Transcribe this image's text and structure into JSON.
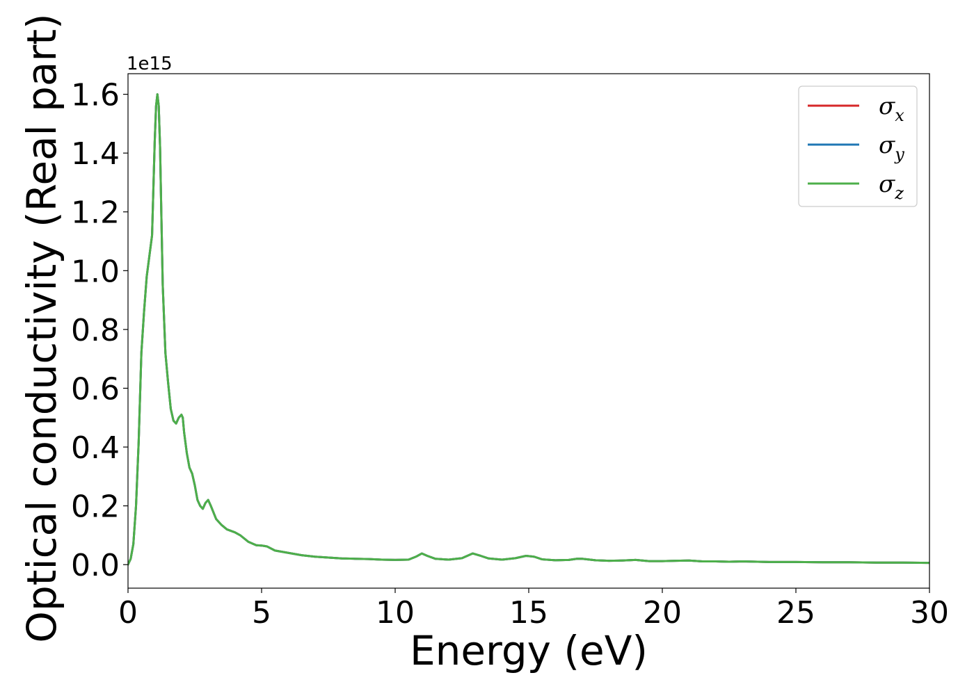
{
  "chart_data": {
    "type": "line",
    "title": "",
    "xlabel": "Energy (eV)",
    "ylabel": "Optical conductivity (Real part)",
    "y_offset_text": "1e15",
    "y_scale_factor": 1000000000000000.0,
    "xlim": [
      0,
      30
    ],
    "ylim": [
      -0.08,
      1.67
    ],
    "x_ticks": [
      0,
      5,
      10,
      15,
      20,
      25,
      30
    ],
    "x_tick_labels": [
      "0",
      "5",
      "10",
      "15",
      "20",
      "25",
      "30"
    ],
    "y_ticks": [
      0.0,
      0.2,
      0.4,
      0.6,
      0.8,
      1.0,
      1.2,
      1.4,
      1.6
    ],
    "y_tick_labels": [
      "0.0",
      "0.2",
      "0.4",
      "0.6",
      "0.8",
      "1.0",
      "1.2",
      "1.4",
      "1.6"
    ],
    "grid": false,
    "legend_position": "top-right",
    "x": [
      0,
      0.1,
      0.2,
      0.3,
      0.4,
      0.5,
      0.6,
      0.7,
      0.8,
      0.9,
      1.0,
      1.05,
      1.1,
      1.15,
      1.2,
      1.25,
      1.3,
      1.4,
      1.5,
      1.6,
      1.7,
      1.8,
      1.9,
      2.0,
      2.05,
      2.1,
      2.2,
      2.3,
      2.4,
      2.5,
      2.6,
      2.7,
      2.8,
      2.9,
      3.0,
      3.1,
      3.3,
      3.5,
      3.7,
      4.0,
      4.2,
      4.5,
      4.8,
      5.0,
      5.2,
      5.5,
      6.0,
      6.5,
      7.0,
      7.5,
      8.0,
      8.5,
      9.0,
      9.5,
      10.0,
      10.5,
      10.8,
      11.0,
      11.2,
      11.5,
      12.0,
      12.5,
      12.9,
      13.2,
      13.5,
      14.0,
      14.5,
      14.9,
      15.2,
      15.5,
      16.0,
      16.5,
      16.8,
      17.0,
      17.5,
      18.0,
      18.5,
      19.0,
      19.5,
      20.0,
      20.5,
      21.0,
      21.5,
      22.0,
      22.5,
      23.0,
      24.0,
      25.0,
      26.0,
      27.0,
      28.0,
      29.0,
      30.0
    ],
    "series": [
      {
        "name": "σx",
        "label_base": "σ",
        "label_sub": "x",
        "color": "#d62728",
        "values": [
          0.0,
          0.02,
          0.07,
          0.2,
          0.42,
          0.72,
          0.86,
          0.98,
          1.05,
          1.12,
          1.44,
          1.56,
          1.6,
          1.56,
          1.42,
          1.18,
          0.95,
          0.72,
          0.62,
          0.53,
          0.49,
          0.48,
          0.5,
          0.51,
          0.5,
          0.45,
          0.38,
          0.33,
          0.31,
          0.27,
          0.22,
          0.2,
          0.19,
          0.21,
          0.22,
          0.2,
          0.155,
          0.135,
          0.12,
          0.11,
          0.1,
          0.078,
          0.066,
          0.065,
          0.062,
          0.048,
          0.04,
          0.032,
          0.027,
          0.024,
          0.021,
          0.02,
          0.019,
          0.017,
          0.016,
          0.017,
          0.028,
          0.038,
          0.03,
          0.02,
          0.017,
          0.022,
          0.038,
          0.03,
          0.021,
          0.017,
          0.022,
          0.03,
          0.027,
          0.018,
          0.015,
          0.016,
          0.02,
          0.02,
          0.015,
          0.013,
          0.014,
          0.016,
          0.012,
          0.012,
          0.013,
          0.014,
          0.011,
          0.011,
          0.01,
          0.011,
          0.009,
          0.009,
          0.008,
          0.008,
          0.007,
          0.007,
          0.006
        ]
      },
      {
        "name": "σy",
        "label_base": "σ",
        "label_sub": "y",
        "color": "#1f77b4",
        "values": [
          0.0,
          0.02,
          0.07,
          0.2,
          0.42,
          0.72,
          0.86,
          0.98,
          1.05,
          1.12,
          1.44,
          1.56,
          1.6,
          1.56,
          1.42,
          1.18,
          0.95,
          0.72,
          0.62,
          0.53,
          0.49,
          0.48,
          0.5,
          0.51,
          0.5,
          0.45,
          0.38,
          0.33,
          0.31,
          0.27,
          0.22,
          0.2,
          0.19,
          0.21,
          0.22,
          0.2,
          0.155,
          0.135,
          0.12,
          0.11,
          0.1,
          0.078,
          0.066,
          0.065,
          0.062,
          0.048,
          0.04,
          0.032,
          0.027,
          0.024,
          0.021,
          0.02,
          0.019,
          0.017,
          0.016,
          0.017,
          0.028,
          0.038,
          0.03,
          0.02,
          0.017,
          0.022,
          0.038,
          0.03,
          0.021,
          0.017,
          0.022,
          0.03,
          0.027,
          0.018,
          0.015,
          0.016,
          0.02,
          0.02,
          0.015,
          0.013,
          0.014,
          0.016,
          0.012,
          0.012,
          0.013,
          0.014,
          0.011,
          0.011,
          0.01,
          0.011,
          0.009,
          0.009,
          0.008,
          0.008,
          0.007,
          0.007,
          0.006
        ]
      },
      {
        "name": "σz",
        "label_base": "σ",
        "label_sub": "z",
        "color": "#4daf4a",
        "values": [
          0.0,
          0.02,
          0.07,
          0.2,
          0.42,
          0.72,
          0.86,
          0.98,
          1.05,
          1.12,
          1.44,
          1.56,
          1.6,
          1.56,
          1.42,
          1.18,
          0.95,
          0.72,
          0.62,
          0.53,
          0.49,
          0.48,
          0.5,
          0.51,
          0.5,
          0.45,
          0.38,
          0.33,
          0.31,
          0.27,
          0.22,
          0.2,
          0.19,
          0.21,
          0.22,
          0.2,
          0.155,
          0.135,
          0.12,
          0.11,
          0.1,
          0.078,
          0.066,
          0.065,
          0.062,
          0.048,
          0.04,
          0.032,
          0.027,
          0.024,
          0.021,
          0.02,
          0.019,
          0.017,
          0.016,
          0.017,
          0.028,
          0.038,
          0.03,
          0.02,
          0.017,
          0.022,
          0.038,
          0.03,
          0.021,
          0.017,
          0.022,
          0.03,
          0.027,
          0.018,
          0.015,
          0.016,
          0.02,
          0.02,
          0.015,
          0.013,
          0.014,
          0.016,
          0.012,
          0.012,
          0.013,
          0.014,
          0.011,
          0.011,
          0.01,
          0.011,
          0.009,
          0.009,
          0.008,
          0.008,
          0.007,
          0.007,
          0.006
        ]
      }
    ]
  }
}
